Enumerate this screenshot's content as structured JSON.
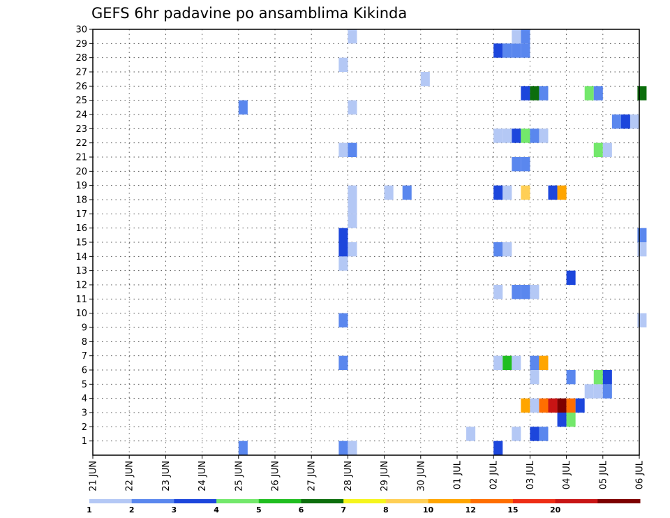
{
  "chart_data": {
    "type": "heatmap",
    "title": "GEFS 6hr padavine po ansamblima Kikinda",
    "xlabel": "",
    "ylabel": "",
    "x_tick_labels": [
      "21 JUN",
      "22 JUN",
      "23 JUN",
      "24 JUN",
      "25 JUN",
      "26 JUN",
      "27 JUN",
      "28 JUN",
      "29 JUN",
      "30 JUN",
      "01 JUL",
      "02 JUL",
      "03 JUL",
      "04 JUL",
      "05 JUL",
      "06 JUL"
    ],
    "y_tick_labels": [
      "1",
      "2",
      "3",
      "4",
      "5",
      "6",
      "7",
      "8",
      "9",
      "10",
      "11",
      "12",
      "13",
      "14",
      "15",
      "16",
      "17",
      "18",
      "19",
      "20",
      "21",
      "22",
      "23",
      "24",
      "25",
      "26",
      "27",
      "28",
      "29",
      "30"
    ],
    "x_range_days": [
      0,
      15
    ],
    "x_step_days": 0.25,
    "y_range": [
      0,
      30
    ],
    "grid": true,
    "legend_position": "bottom",
    "legend": {
      "labels": [
        "1",
        "2",
        "3",
        "4",
        "5",
        "6",
        "7",
        "8",
        "10",
        "12",
        "15",
        "20"
      ],
      "colors": [
        "#b4c8f5",
        "#5a87ee",
        "#1c46dc",
        "#73e86b",
        "#20be20",
        "#0c6e0c",
        "#f5f51c",
        "#ffcf55",
        "#ffa500",
        "#ff6e00",
        "#ee2d14",
        "#c81414",
        "#7d0000"
      ]
    },
    "cells": [
      {
        "x": 7.0,
        "y": 0,
        "level": 1
      },
      {
        "x": 4.0,
        "y": 0,
        "level": 2
      },
      {
        "x": 11.0,
        "y": 0,
        "level": 3
      },
      {
        "x": 6.75,
        "y": 0,
        "level": 2
      },
      {
        "x": 7.0,
        "y": 0,
        "level": 1
      },
      {
        "x": 10.25,
        "y": 1,
        "level": 1
      },
      {
        "x": 11.5,
        "y": 1,
        "level": 1
      },
      {
        "x": 12.0,
        "y": 1,
        "level": 3
      },
      {
        "x": 12.25,
        "y": 1,
        "level": 2
      },
      {
        "x": 12.75,
        "y": 2,
        "level": 3
      },
      {
        "x": 13.0,
        "y": 2,
        "level": 4
      },
      {
        "x": 11.75,
        "y": 3,
        "level": 9
      },
      {
        "x": 12.0,
        "y": 3,
        "level": 1
      },
      {
        "x": 12.25,
        "y": 3,
        "level": 10
      },
      {
        "x": 12.5,
        "y": 3,
        "level": 12
      },
      {
        "x": 12.75,
        "y": 3,
        "level": 13
      },
      {
        "x": 13.0,
        "y": 3,
        "level": 10
      },
      {
        "x": 13.25,
        "y": 3,
        "level": 3
      },
      {
        "x": 13.5,
        "y": 4,
        "level": 1
      },
      {
        "x": 13.75,
        "y": 4,
        "level": 1
      },
      {
        "x": 14.0,
        "y": 4,
        "level": 2
      },
      {
        "x": 12.0,
        "y": 5,
        "level": 1
      },
      {
        "x": 13.0,
        "y": 5,
        "level": 2
      },
      {
        "x": 13.75,
        "y": 5,
        "level": 4
      },
      {
        "x": 14.0,
        "y": 5,
        "level": 3
      },
      {
        "x": 6.75,
        "y": 6,
        "level": 2
      },
      {
        "x": 11.0,
        "y": 6,
        "level": 1
      },
      {
        "x": 11.25,
        "y": 6,
        "level": 5
      },
      {
        "x": 11.5,
        "y": 6,
        "level": 1
      },
      {
        "x": 12.0,
        "y": 6,
        "level": 2
      },
      {
        "x": 12.25,
        "y": 6,
        "level": 9
      },
      {
        "x": 6.75,
        "y": 9,
        "level": 2
      },
      {
        "x": 14.95,
        "y": 9,
        "level": 1
      },
      {
        "x": 11.0,
        "y": 11,
        "level": 1
      },
      {
        "x": 11.5,
        "y": 11,
        "level": 2
      },
      {
        "x": 11.75,
        "y": 11,
        "level": 2
      },
      {
        "x": 12.0,
        "y": 11,
        "level": 1
      },
      {
        "x": 13.0,
        "y": 12,
        "level": 3
      },
      {
        "x": 6.75,
        "y": 13,
        "level": 1
      },
      {
        "x": 6.75,
        "y": 14,
        "level": 3
      },
      {
        "x": 7.0,
        "y": 14,
        "level": 1
      },
      {
        "x": 11.0,
        "y": 14,
        "level": 2
      },
      {
        "x": 11.25,
        "y": 14,
        "level": 1
      },
      {
        "x": 6.75,
        "y": 15,
        "level": 3
      },
      {
        "x": 14.95,
        "y": 15,
        "level": 2
      },
      {
        "x": 14.95,
        "y": 14,
        "level": 1
      },
      {
        "x": 7.0,
        "y": 16,
        "level": 1
      },
      {
        "x": 7.0,
        "y": 17,
        "level": 1
      },
      {
        "x": 7.0,
        "y": 18,
        "level": 1
      },
      {
        "x": 8.0,
        "y": 18,
        "level": 1
      },
      {
        "x": 8.5,
        "y": 18,
        "level": 2
      },
      {
        "x": 11.0,
        "y": 18,
        "level": 3
      },
      {
        "x": 11.25,
        "y": 18,
        "level": 1
      },
      {
        "x": 11.75,
        "y": 18,
        "level": 8
      },
      {
        "x": 12.5,
        "y": 18,
        "level": 3
      },
      {
        "x": 12.75,
        "y": 18,
        "level": 9
      },
      {
        "x": 11.5,
        "y": 20,
        "level": 2
      },
      {
        "x": 11.75,
        "y": 20,
        "level": 2
      },
      {
        "x": 6.75,
        "y": 21,
        "level": 1
      },
      {
        "x": 7.0,
        "y": 21,
        "level": 2
      },
      {
        "x": 13.75,
        "y": 21,
        "level": 4
      },
      {
        "x": 14.0,
        "y": 21,
        "level": 1
      },
      {
        "x": 11.0,
        "y": 22,
        "level": 1
      },
      {
        "x": 11.25,
        "y": 22,
        "level": 1
      },
      {
        "x": 11.5,
        "y": 22,
        "level": 3
      },
      {
        "x": 11.75,
        "y": 22,
        "level": 4
      },
      {
        "x": 12.0,
        "y": 22,
        "level": 2
      },
      {
        "x": 12.25,
        "y": 22,
        "level": 1
      },
      {
        "x": 14.25,
        "y": 23,
        "level": 2
      },
      {
        "x": 14.5,
        "y": 23,
        "level": 3
      },
      {
        "x": 14.75,
        "y": 23,
        "level": 1
      },
      {
        "x": 4.0,
        "y": 24,
        "level": 2
      },
      {
        "x": 7.0,
        "y": 24,
        "level": 1
      },
      {
        "x": 11.75,
        "y": 25,
        "level": 3
      },
      {
        "x": 12.0,
        "y": 25,
        "level": 6
      },
      {
        "x": 12.25,
        "y": 25,
        "level": 2
      },
      {
        "x": 13.5,
        "y": 25,
        "level": 4
      },
      {
        "x": 13.75,
        "y": 25,
        "level": 2
      },
      {
        "x": 14.95,
        "y": 25,
        "level": 6
      },
      {
        "x": 9.0,
        "y": 26,
        "level": 1
      },
      {
        "x": 6.75,
        "y": 27,
        "level": 1
      },
      {
        "x": 11.0,
        "y": 28,
        "level": 3
      },
      {
        "x": 11.25,
        "y": 28,
        "level": 2
      },
      {
        "x": 11.5,
        "y": 28,
        "level": 2
      },
      {
        "x": 11.75,
        "y": 28,
        "level": 2
      },
      {
        "x": 7.0,
        "y": 29,
        "level": 1
      },
      {
        "x": 11.5,
        "y": 29,
        "level": 1
      },
      {
        "x": 11.75,
        "y": 29,
        "level": 2
      }
    ]
  }
}
